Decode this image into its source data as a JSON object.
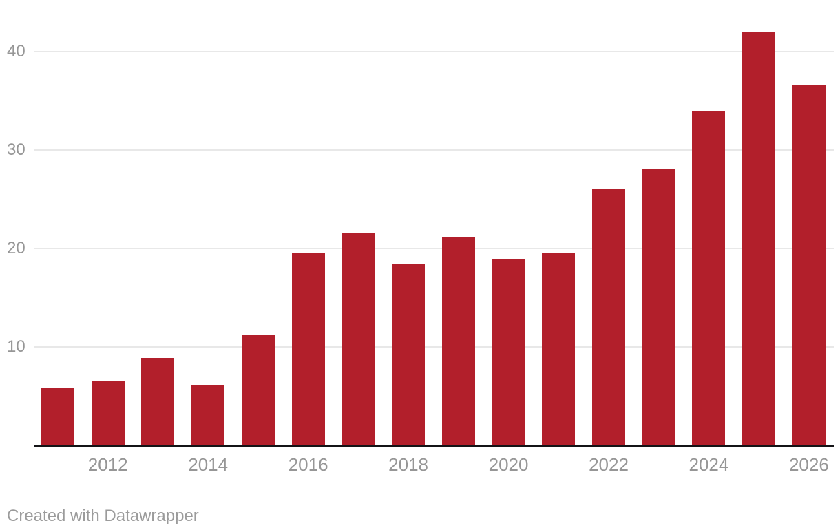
{
  "footer": {
    "credit": "Created with Datawrapper"
  },
  "chart_data": {
    "type": "bar",
    "title": "",
    "categories": [
      "2011",
      "2012",
      "2013",
      "2014",
      "2015",
      "2016",
      "2017",
      "2018",
      "2019",
      "2020",
      "2021",
      "2022",
      "2023",
      "2024",
      "2025",
      "2026"
    ],
    "values": [
      5.7,
      6.4,
      8.8,
      6.0,
      11.1,
      19.4,
      21.5,
      18.3,
      21.0,
      18.8,
      19.5,
      25.9,
      28.0,
      33.9,
      41.9,
      36.5
    ],
    "x_tick_labels": [
      "2012",
      "2014",
      "2016",
      "2018",
      "2020",
      "2022",
      "2024",
      "2026"
    ],
    "y_ticks": [
      10,
      20,
      30,
      40
    ],
    "y_tick_labels": [
      "10",
      "20",
      "30",
      "40"
    ],
    "ylim": [
      0,
      45
    ],
    "xlabel": "",
    "ylabel": "",
    "legend": "none",
    "grid": "horizontal",
    "bar_color": "#b21f2b",
    "axis_label_color": "#969696",
    "gridline_color": "#e8e8e8",
    "baseline_color": "#141417"
  }
}
